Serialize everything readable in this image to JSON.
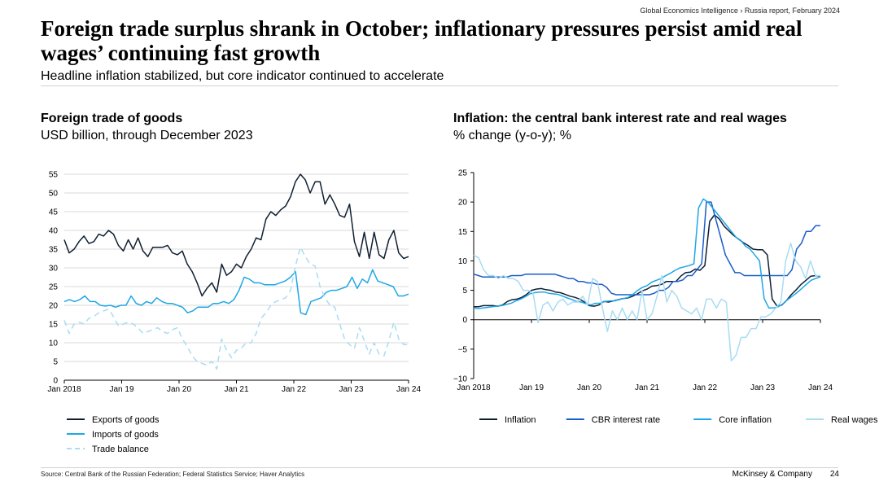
{
  "header": {
    "breadcrumb": "Global Economics Intelligence › Russia report, February 2024",
    "title": "Foreign trade surplus shrank in October; inflationary pressures persist amid real wages’ continuing fast growth",
    "subtitle": "Headline inflation stabilized, but core indicator continued to accelerate"
  },
  "left_panel": {
    "title": "Foreign trade of goods",
    "subtitle": "USD billion, through December 2023"
  },
  "right_panel": {
    "title": "Inflation: the central bank interest rate and real wages",
    "subtitle": "% change (y-o-y); %"
  },
  "footer": {
    "source": "Source: Central Bank of the Russian Federation; Federal Statistics Service; Haver Analytics",
    "brand": "McKinsey & Company",
    "page": "24"
  },
  "colors": {
    "dark": "#0f1f33",
    "mid_blue": "#1a5dc8",
    "light_blue": "#1ea7e6",
    "pale_blue": "#a8dcf3",
    "grid": "#d9d9d9"
  },
  "chart_data": [
    {
      "type": "line",
      "title": "Foreign trade of goods",
      "ylim": [
        0,
        55
      ],
      "yticks": [
        "0",
        "5",
        "10",
        "15",
        "20",
        "25",
        "30",
        "35",
        "40",
        "45",
        "50",
        "55"
      ],
      "xticks": [
        "Jan 2018",
        "Jan 19",
        "Jan 20",
        "Jan 21",
        "Jan 22",
        "Jan 23",
        "Jan 24"
      ],
      "series": [
        {
          "name": "Exports of goods",
          "color": "#0f1f33",
          "dash": false,
          "values": [
            37.5,
            34,
            35,
            37,
            38.5,
            36.5,
            37,
            39,
            38.5,
            40,
            39,
            36,
            34.5,
            37.5,
            35,
            38,
            34.5,
            33,
            35.5,
            35.5,
            35.5,
            36,
            34,
            33.5,
            34.5,
            31,
            29,
            26,
            22.5,
            24.5,
            26,
            23.5,
            31,
            28,
            29,
            31,
            30,
            33,
            35,
            38,
            37.5,
            43,
            45,
            44,
            45.5,
            46.5,
            49,
            53,
            55,
            53.5,
            50,
            53,
            53,
            47,
            49.5,
            47,
            44,
            43.5,
            47,
            37,
            33,
            39.5,
            32.5,
            39.5,
            33.5,
            32.5,
            37.5,
            40,
            34,
            32.5,
            33
          ]
        },
        {
          "name": "Imports of goods",
          "color": "#1ea7e6",
          "dash": false,
          "values": [
            21,
            21.5,
            21,
            21.5,
            22.5,
            21,
            21,
            20,
            19.8,
            20,
            19.5,
            20,
            20,
            22.5,
            20.5,
            20,
            21,
            20.5,
            22,
            21,
            20.5,
            20.5,
            20,
            19.5,
            18,
            18.5,
            19.5,
            19.5,
            19.5,
            20.5,
            20.5,
            21,
            20.5,
            21.5,
            24,
            27.5,
            27,
            26,
            26,
            25.5,
            25.5,
            25.5,
            26,
            26.5,
            27.5,
            29,
            18,
            17.5,
            21,
            21.5,
            22,
            23.5,
            24,
            24,
            24.5,
            25,
            27.5,
            24.5,
            27,
            26,
            29.5,
            26.5,
            26,
            25.5,
            25,
            22.5,
            22.5,
            23
          ]
        },
        {
          "name": "Trade balance",
          "color": "#a8dcf3",
          "dash": true,
          "values": [
            16,
            12.5,
            15,
            15.5,
            15,
            16.5,
            17,
            18,
            18.5,
            19,
            17,
            14.5,
            15,
            15.5,
            15,
            14,
            12.5,
            13,
            13.5,
            14,
            13,
            12.5,
            13.5,
            14,
            11,
            9,
            6.5,
            5,
            4.5,
            4,
            5,
            3,
            11,
            8,
            6,
            8,
            8.5,
            10,
            10,
            12.5,
            16.5,
            18,
            20,
            21,
            21.5,
            22,
            24,
            30.5,
            35.5,
            33,
            31,
            30.5,
            25,
            22,
            20,
            19.5,
            15,
            11,
            9.5,
            8.5,
            14,
            10.5,
            7,
            10,
            7,
            6.5,
            10.5,
            15.5,
            11,
            9.5,
            9.5
          ]
        }
      ]
    },
    {
      "type": "line",
      "title": "Inflation: the central bank interest rate and real wages",
      "ylim": [
        -10,
        25
      ],
      "yticks": [
        "25",
        "20",
        "15",
        "10",
        "5",
        "0",
        "−5",
        "−10"
      ],
      "xticks": [
        "Jan 2018",
        "Jan 19",
        "Jan 20",
        "Jan 21",
        "Jan 22",
        "Jan 23",
        "Jan 24"
      ],
      "series": [
        {
          "name": "Inflation",
          "color": "#0f1f33",
          "dash": false,
          "values": [
            2.2,
            2.2,
            2.4,
            2.4,
            2.4,
            2.3,
            2.5,
            3.1,
            3.4,
            3.5,
            3.8,
            4.3,
            5,
            5.2,
            5.3,
            5.1,
            5,
            4.7,
            4.6,
            4.3,
            4,
            3.8,
            3.5,
            3,
            2.4,
            2.3,
            2.5,
            3.1,
            3,
            3.2,
            3.4,
            3.6,
            3.7,
            4,
            4.4,
            4.9,
            5.2,
            5.7,
            5.8,
            6,
            6.5,
            6.5,
            6.5,
            7.4,
            8,
            8.1,
            8.6,
            8.4,
            9.2,
            16.7,
            17.8,
            17.1,
            15.9,
            15.1,
            14.3,
            13.7,
            13.1,
            12.6,
            12,
            11.9,
            11.9,
            11,
            3.5,
            2.3,
            2.5,
            3.3,
            4.3,
            5.1,
            6,
            6.7,
            7.4,
            7.5,
            7.4
          ]
        },
        {
          "name": "CBR interest rate",
          "color": "#1a5dc8",
          "dash": false,
          "values": [
            7.75,
            7.5,
            7.25,
            7.25,
            7.25,
            7.25,
            7.25,
            7.25,
            7.5,
            7.5,
            7.5,
            7.75,
            7.75,
            7.75,
            7.75,
            7.75,
            7.75,
            7.75,
            7.5,
            7.25,
            7,
            7,
            6.5,
            6.5,
            6.25,
            6.25,
            6,
            6,
            5.5,
            4.5,
            4.25,
            4.25,
            4.25,
            4.25,
            4.25,
            4.25,
            4.25,
            4.25,
            4.5,
            5,
            5,
            5.5,
            6.5,
            6.5,
            6.75,
            7.5,
            7.5,
            8.5,
            9.5,
            20,
            20,
            17,
            14,
            11,
            9.5,
            8,
            8,
            7.5,
            7.5,
            7.5,
            7.5,
            7.5,
            7.5,
            7.5,
            7.5,
            7.5,
            7.5,
            8.5,
            12,
            13,
            15,
            15,
            16,
            16
          ]
        },
        {
          "name": "Core inflation",
          "color": "#1ea7e6",
          "dash": false,
          "values": [
            2,
            1.9,
            2,
            2.1,
            2.2,
            2.3,
            2.4,
            2.6,
            2.8,
            3.2,
            3.5,
            3.9,
            4.4,
            4.6,
            4.7,
            4.7,
            4.5,
            4.4,
            4.3,
            4,
            3.7,
            3.4,
            3.1,
            3,
            2.7,
            2.5,
            2.8,
            2.8,
            3.1,
            3.2,
            3.2,
            3.4,
            3.6,
            3.8,
            4.3,
            5,
            5.5,
            5.8,
            6.4,
            6.7,
            7,
            7.5,
            7.9,
            8.4,
            8.8,
            9,
            9.2,
            9.5,
            19,
            20.5,
            20,
            19,
            18,
            17,
            16,
            15,
            14,
            13.5,
            12.5,
            12,
            11,
            10,
            3.6,
            2,
            2,
            2.2,
            2.7,
            3.4,
            4,
            4.6,
            5.3,
            6,
            6.7,
            7,
            7.3
          ]
        },
        {
          "name": "Real wages",
          "color": "#a8dcf3",
          "dash": false,
          "values": [
            11,
            10.5,
            8.5,
            7.5,
            7.5,
            7,
            7.5,
            7,
            7,
            6.5,
            5,
            5,
            4.5,
            -0.5,
            2.5,
            3,
            1.5,
            3,
            3.5,
            2.5,
            3,
            3,
            4,
            2.5,
            7,
            6.5,
            2,
            -2,
            1.5,
            0,
            2,
            0,
            1.5,
            0,
            5,
            0,
            1,
            4,
            7.5,
            3,
            5,
            4,
            2,
            1.5,
            1,
            2,
            0,
            3.5,
            3.5,
            2,
            3.5,
            3,
            -7,
            -6,
            -3,
            -3,
            -1.5,
            -1.5,
            0.5,
            0.5,
            1,
            2,
            3,
            10,
            13,
            10,
            9,
            7,
            10,
            7.5,
            7.5
          ]
        }
      ]
    }
  ]
}
